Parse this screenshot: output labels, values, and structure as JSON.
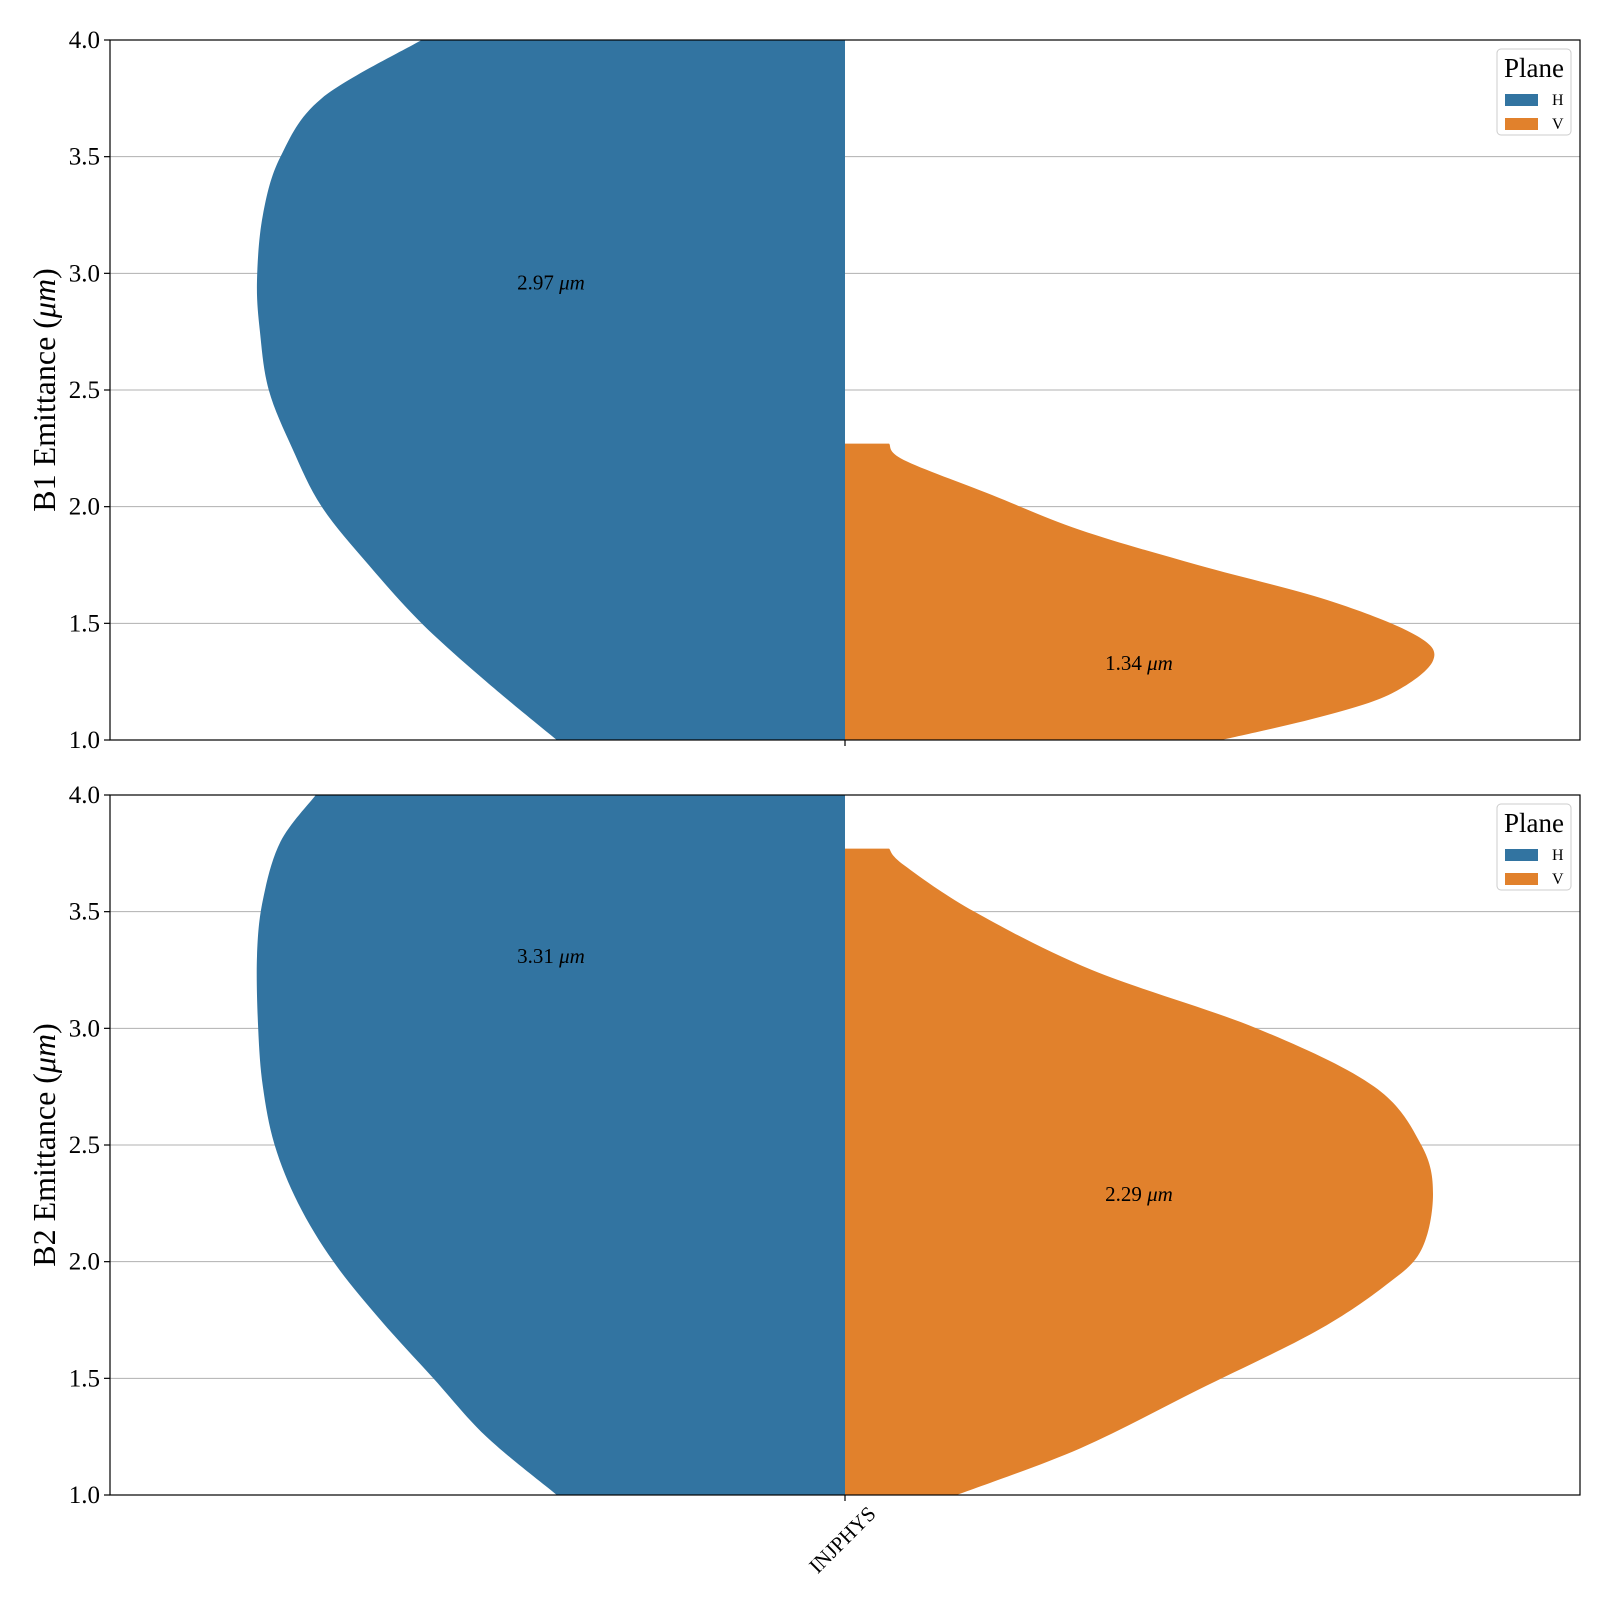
{
  "chart_data": {
    "type": "violin",
    "category": "INJPHYS",
    "legend": {
      "title": "Plane",
      "position": "top-right",
      "items": [
        {
          "label": "H",
          "color": "#3274a1"
        },
        {
          "label": "V",
          "color": "#e1812c"
        }
      ]
    },
    "grid": "horizontal",
    "panels": [
      {
        "ylabel_prefix": "B1 Emittance (",
        "ylabel_unit": "μm",
        "ylabel_suffix": ")",
        "ylim": [
          1.0,
          4.0
        ],
        "yticks": [
          "1.0",
          "1.5",
          "2.0",
          "2.5",
          "3.0",
          "3.5",
          "4.0"
        ],
        "series": [
          {
            "name": "H",
            "color": "#3274a1",
            "side": "left",
            "density": [
              [
                1.0,
                0.49
              ],
              [
                1.25,
                0.61
              ],
              [
                1.5,
                0.72
              ],
              [
                1.75,
                0.81
              ],
              [
                2.0,
                0.89
              ],
              [
                2.25,
                0.94
              ],
              [
                2.5,
                0.98
              ],
              [
                2.75,
                0.995
              ],
              [
                2.97,
                1.0
              ],
              [
                3.25,
                0.99
              ],
              [
                3.5,
                0.96
              ],
              [
                3.75,
                0.89
              ],
              [
                4.0,
                0.72
              ]
            ],
            "cut": [
              null,
              null
            ],
            "annotation_value": "2.97",
            "annotation_y": 2.96
          },
          {
            "name": "V",
            "color": "#e1812c",
            "side": "right",
            "density": [
              [
                1.0,
                0.64
              ],
              [
                1.1,
                0.81
              ],
              [
                1.2,
                0.93
              ],
              [
                1.34,
                1.0
              ],
              [
                1.45,
                0.97
              ],
              [
                1.6,
                0.82
              ],
              [
                1.75,
                0.6
              ],
              [
                1.9,
                0.4
              ],
              [
                2.05,
                0.25
              ],
              [
                2.2,
                0.1
              ],
              [
                2.27,
                0.075
              ]
            ],
            "cut": [
              null,
              2.27
            ],
            "annotation_value": "1.34",
            "annotation_y": 1.33
          }
        ]
      },
      {
        "ylabel_prefix": "B2 Emittance (",
        "ylabel_unit": "μm",
        "ylabel_suffix": ")",
        "ylim": [
          1.0,
          4.0
        ],
        "yticks": [
          "1.0",
          "1.5",
          "2.0",
          "2.5",
          "3.0",
          "3.5",
          "4.0"
        ],
        "series": [
          {
            "name": "H",
            "color": "#3274a1",
            "side": "left",
            "density": [
              [
                1.0,
                0.49
              ],
              [
                1.25,
                0.61
              ],
              [
                1.5,
                0.7
              ],
              [
                1.75,
                0.79
              ],
              [
                2.0,
                0.87
              ],
              [
                2.25,
                0.93
              ],
              [
                2.5,
                0.97
              ],
              [
                2.75,
                0.99
              ],
              [
                3.0,
                0.998
              ],
              [
                3.31,
                1.0
              ],
              [
                3.55,
                0.99
              ],
              [
                3.8,
                0.96
              ],
              [
                4.0,
                0.9
              ]
            ],
            "cut": [
              null,
              null
            ],
            "annotation_value": "3.31",
            "annotation_y": 3.31
          },
          {
            "name": "V",
            "color": "#e1812c",
            "side": "right",
            "density": [
              [
                1.0,
                0.19
              ],
              [
                1.2,
                0.4
              ],
              [
                1.45,
                0.6
              ],
              [
                1.7,
                0.8
              ],
              [
                1.9,
                0.92
              ],
              [
                2.05,
                0.98
              ],
              [
                2.29,
                1.0
              ],
              [
                2.5,
                0.98
              ],
              [
                2.75,
                0.9
              ],
              [
                3.0,
                0.7
              ],
              [
                3.25,
                0.42
              ],
              [
                3.5,
                0.22
              ],
              [
                3.7,
                0.1
              ],
              [
                3.77,
                0.075
              ]
            ],
            "cut": [
              null,
              3.77
            ],
            "annotation_value": "2.29",
            "annotation_y": 2.29
          }
        ]
      }
    ]
  }
}
